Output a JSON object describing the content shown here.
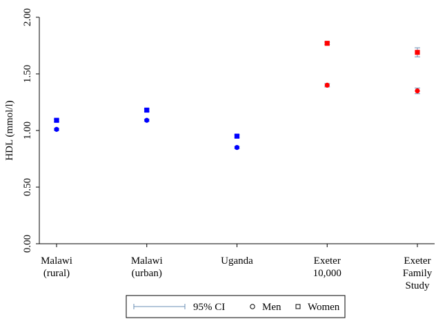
{
  "chart_data": {
    "type": "scatter",
    "categories": [
      [
        "Malawi",
        "(rural)"
      ],
      [
        "Malawi",
        "(urban)"
      ],
      [
        "Uganda"
      ],
      [
        "Exeter",
        "10,000"
      ],
      [
        "Exeter",
        "Family",
        "Study"
      ]
    ],
    "point_colors": [
      "#0000ff",
      "#0000ff",
      "#0000ff",
      "#ff0000",
      "#ff0000"
    ],
    "series": [
      {
        "name": "Men",
        "marker": "circle",
        "values": [
          1.01,
          1.09,
          0.85,
          1.4,
          1.35
        ],
        "errors": [
          0.01,
          0.01,
          0.01,
          0.015,
          0.025
        ]
      },
      {
        "name": "Women",
        "marker": "square",
        "values": [
          1.09,
          1.18,
          0.95,
          1.77,
          1.69
        ],
        "errors": [
          0.01,
          0.01,
          0.01,
          0.01,
          0.04
        ]
      }
    ],
    "ci_label": "95% CI",
    "ci_color": "#6a8fb5",
    "ylabel": "HDL (mmol/l)",
    "ylim": [
      0,
      2
    ],
    "yticks": [
      {
        "value": 0,
        "label": "0.00"
      },
      {
        "value": 0.5,
        "label": "0.50"
      },
      {
        "value": 1,
        "label": "1.00"
      },
      {
        "value": 1.5,
        "label": "1.50"
      },
      {
        "value": 2,
        "label": "2.00"
      }
    ]
  }
}
